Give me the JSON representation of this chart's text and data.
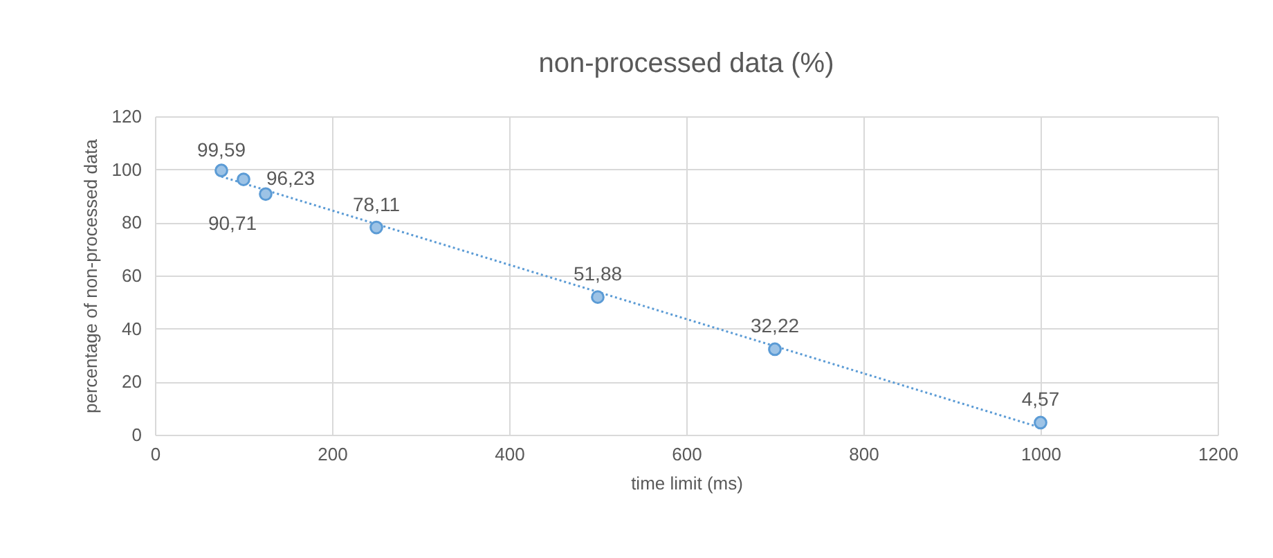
{
  "chart_data": {
    "type": "scatter",
    "title": "non-processed  data (%)",
    "xlabel": "time limit (ms)",
    "ylabel": "percentage of non-processed data",
    "xlim": [
      0,
      1200
    ],
    "xticks": [
      0,
      200,
      400,
      600,
      800,
      1000,
      1200
    ],
    "ylim": [
      0,
      120
    ],
    "yticks": [
      0,
      20,
      40,
      60,
      80,
      100,
      120
    ],
    "grid": true,
    "marker": "circle",
    "series": [
      {
        "color": "#5b9bd5",
        "x": [
          75,
          100,
          125,
          250,
          500,
          700,
          1000
        ],
        "values": [
          99.59,
          96.23,
          90.71,
          78.11,
          51.88,
          32.22,
          4.57
        ],
        "value_labels": [
          "99,59",
          "96,23",
          "90,71",
          "78,11",
          "51,88",
          "32,22",
          "4,57"
        ]
      },
      {
        "type": "line",
        "line_style": "dotted",
        "marker": "none",
        "color": "#5b9bd5",
        "x": [
          75,
          1000
        ],
        "values": [
          97.3,
          2.7
        ]
      }
    ]
  }
}
